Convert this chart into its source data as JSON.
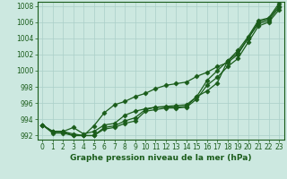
{
  "bg_color": "#cce8e0",
  "line_color": "#1a5c1a",
  "grid_color": "#aacfc8",
  "xlabel": "Graphe pression niveau de la mer (hPa)",
  "ylim": [
    991.5,
    1008.5
  ],
  "xlim": [
    -0.5,
    23.5
  ],
  "yticks": [
    992,
    994,
    996,
    998,
    1000,
    1002,
    1004,
    1006,
    1008
  ],
  "xticks": [
    0,
    1,
    2,
    3,
    4,
    5,
    6,
    7,
    8,
    9,
    10,
    11,
    12,
    13,
    14,
    15,
    16,
    17,
    18,
    19,
    20,
    21,
    22,
    23
  ],
  "series": [
    [
      993.3,
      992.5,
      992.5,
      993.0,
      992.2,
      992.5,
      993.3,
      993.5,
      994.5,
      995.0,
      995.3,
      995.5,
      995.6,
      995.7,
      995.8,
      996.8,
      997.5,
      998.5,
      1001.2,
      1002.5,
      1004.2,
      1006.2,
      1006.5,
      1008.3
    ],
    [
      993.3,
      992.5,
      992.5,
      992.2,
      992.0,
      992.0,
      993.0,
      993.2,
      993.8,
      994.2,
      995.2,
      995.5,
      995.5,
      995.5,
      995.6,
      996.8,
      998.8,
      1000.0,
      1001.2,
      1002.2,
      1004.0,
      1005.8,
      1006.2,
      1007.8
    ],
    [
      993.3,
      992.5,
      992.5,
      992.0,
      992.0,
      992.0,
      992.8,
      993.0,
      993.5,
      993.8,
      995.0,
      995.2,
      995.4,
      995.4,
      995.5,
      996.5,
      998.2,
      999.2,
      1000.5,
      1001.5,
      1003.5,
      1005.5,
      1006.0,
      1007.5
    ],
    [
      993.3,
      992.3,
      992.3,
      992.0,
      992.0,
      993.2,
      994.8,
      995.8,
      996.2,
      996.8,
      997.2,
      997.8,
      998.2,
      998.4,
      998.6,
      999.3,
      999.8,
      1000.5,
      1001.0,
      1002.0,
      1004.0,
      1006.0,
      1006.4,
      1008.0
    ]
  ],
  "figsize": [
    3.2,
    2.0
  ],
  "dpi": 100,
  "tick_fontsize": 5.5,
  "xlabel_fontsize": 6.5,
  "linewidth": 0.9,
  "markersize": 2.5,
  "marker": "D"
}
